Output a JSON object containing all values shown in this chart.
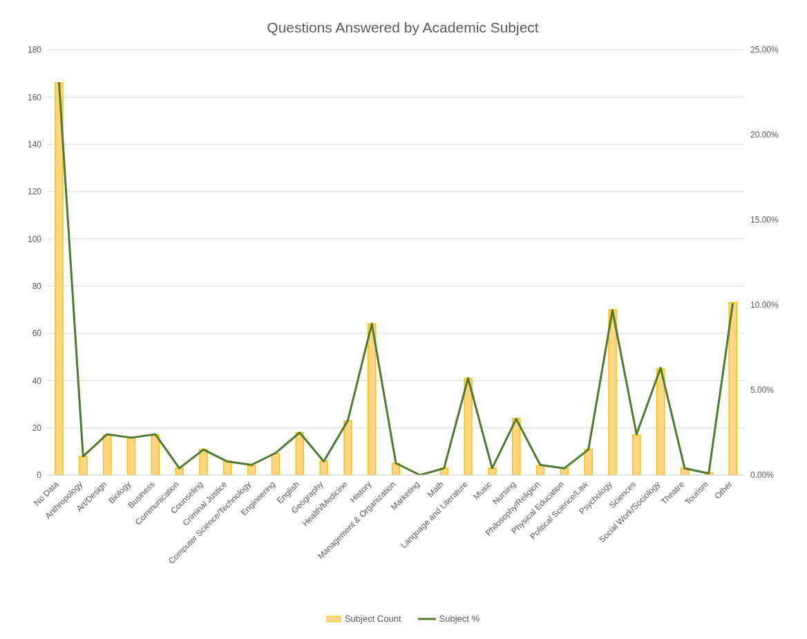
{
  "chart_data": {
    "type": "bar",
    "title": "Questions Answered by Academic Subject",
    "categories": [
      "No Data",
      "Anthropology",
      "Art/Design",
      "Biology",
      "Business",
      "Communication",
      "Counseling",
      "Criminal Justice",
      "Computer Science/Technology",
      "Engineering",
      "English",
      "Geography",
      "Health/Medicine",
      "History",
      "Management & Organization",
      "Marketing",
      "Math",
      "Language and Literature",
      "Music",
      "Nursing",
      "Philosophy/Religion",
      "Physical Education",
      "Political Science/Law",
      "Psychology",
      "Sciences",
      "Social Work/Sociology",
      "Theatre",
      "Tourism",
      "Other"
    ],
    "series": [
      {
        "name": "Subject Count",
        "color": "#fed685",
        "values": [
          166,
          8,
          17,
          16,
          17,
          3,
          11,
          6,
          4,
          9,
          18,
          6,
          23,
          64,
          5,
          0,
          3,
          41,
          3,
          24,
          4,
          3,
          11,
          70,
          17,
          45,
          3,
          1,
          73
        ]
      },
      {
        "name": "Subject %",
        "type": "line",
        "axis": "y2",
        "color": "#4e7a2f",
        "values": [
          23.1,
          1.1,
          2.4,
          2.2,
          2.4,
          0.4,
          1.5,
          0.8,
          0.6,
          1.3,
          2.5,
          0.8,
          3.2,
          8.9,
          0.7,
          0,
          0.4,
          5.7,
          0.4,
          3.3,
          0.6,
          0.4,
          1.5,
          9.7,
          2.4,
          6.3,
          0.4,
          0.1,
          10.1
        ]
      }
    ],
    "ylim": [
      0,
      180
    ],
    "yticks": [
      0,
      20,
      40,
      60,
      80,
      100,
      120,
      140,
      160,
      180
    ],
    "y2lim": [
      0,
      25
    ],
    "y2ticks": [
      {
        "value": 0,
        "label": "0.00%"
      },
      {
        "value": 5,
        "label": "5.00%"
      },
      {
        "value": 10,
        "label": "10.00%"
      },
      {
        "value": 15,
        "label": "15.00%"
      },
      {
        "value": 20,
        "label": "20.00%"
      },
      {
        "value": 25,
        "label": "25.00%"
      }
    ],
    "grid": "y",
    "legend": "bottom",
    "marker": "none"
  }
}
